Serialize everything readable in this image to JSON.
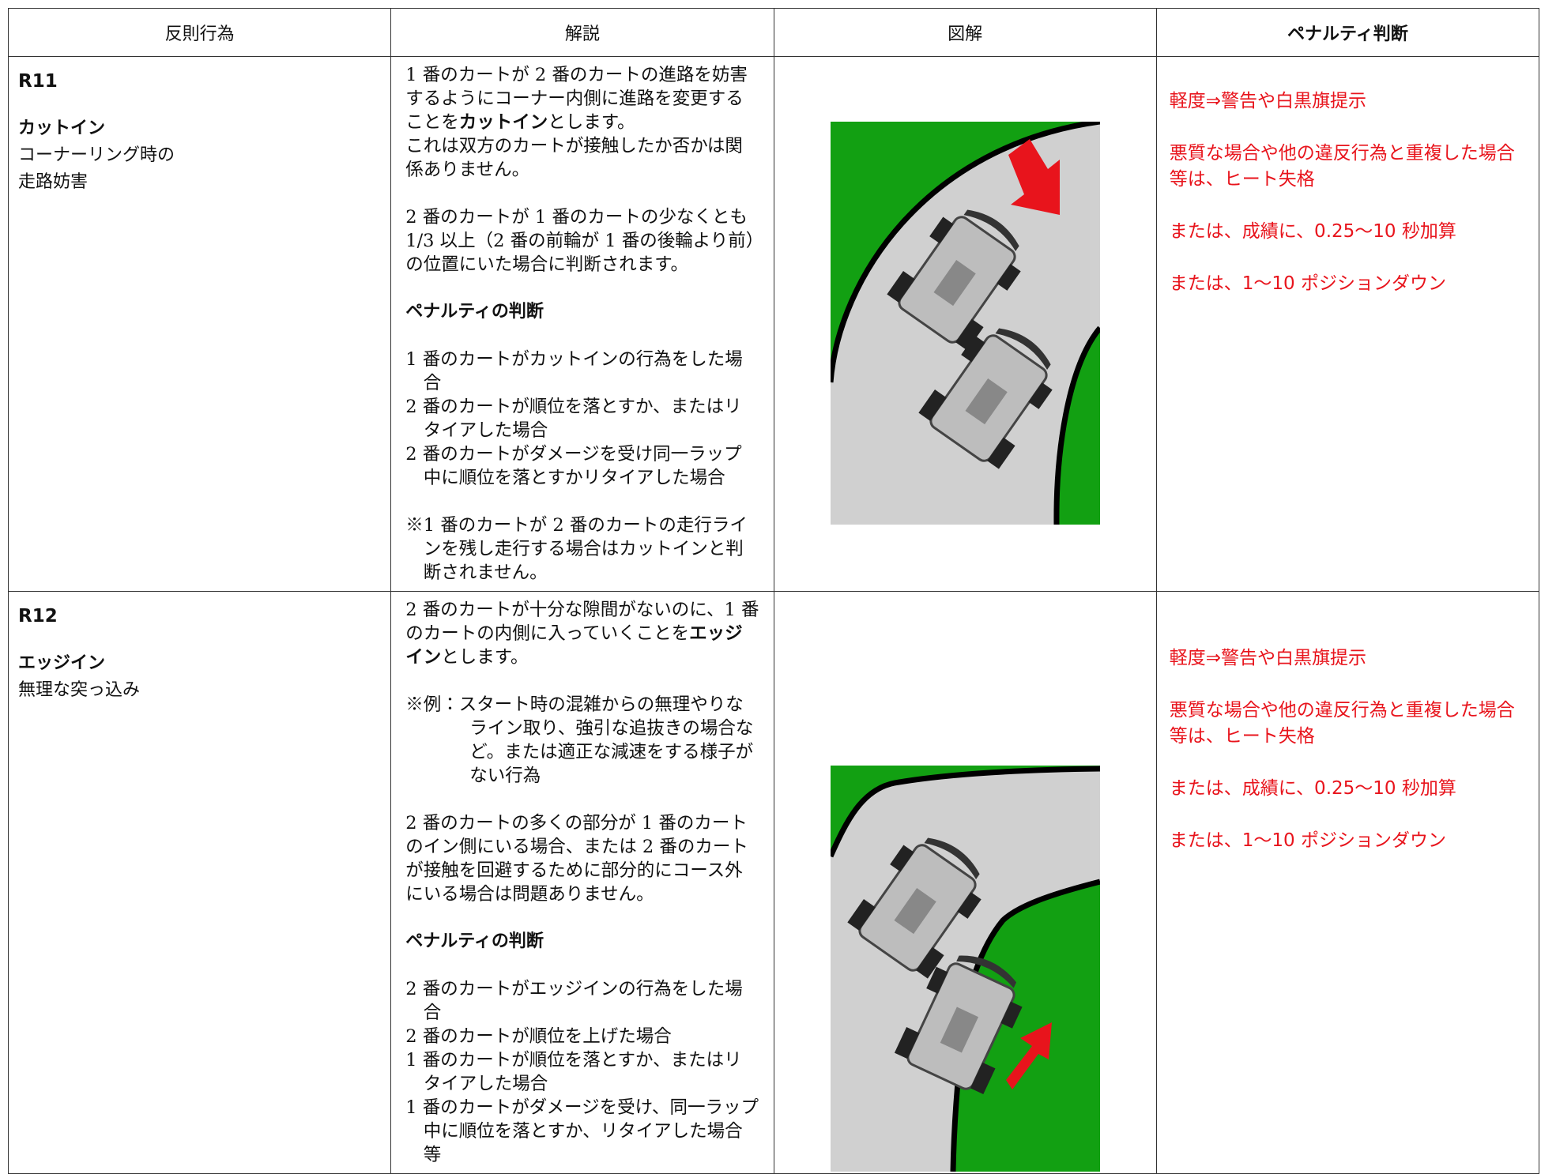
{
  "table": {
    "header": [
      "反則行為",
      "解説",
      "図解",
      "ペナルティ判断"
    ],
    "rows": [
      {
        "code": "R11",
        "name": "カットイン",
        "subtitle": [
          "コーナーリング時の",
          "走路妨害"
        ],
        "intro": [
          [
            {
              "before": "1 番のカートが 2 番のカートの進路を妨害するようにコーナー内側に進路を変更することを",
              "bold": "カットイン",
              "after": "とします。"
            },
            "これは双方のカートが接触したか否かは関係ありません。"
          ],
          [
            "2 番のカートが 1 番のカートの少なくとも 1/3 以上（2 番の前輪が 1 番の後輪より前）の位置にいた場合に判断されます。"
          ]
        ],
        "heading": "ペナルティの判断",
        "cases": [
          "1 番のカートがカットインの行為をした場合",
          "2 番のカートが順位を落とすか、またはリタイアした場合",
          "2 番のカートがダメージを受け同一ラップ中に順位を落とすかリタイアした場合"
        ],
        "note": "※1 番のカートが 2 番のカートの走行ラインを残し走行する場合はカットインと判断されません。",
        "penalty": [
          "軽度⇒警告や白黒旗提示",
          "悪質な場合や他の違反行為と重複した場合等は、ヒート失格",
          "または、成績に、0.25～10 秒加算",
          "または、1～10 ポジションダウン"
        ]
      },
      {
        "code": "R12",
        "name": "エッジイン",
        "subtitle": [
          "無理な突っ込み"
        ],
        "intro": [
          [
            {
              "before": "2 番のカートが十分な隙間がないのに、1 番のカートの内側に入っていくことを",
              "bold": "エッジイン",
              "after": "とします。"
            }
          ],
          [
            "※例：スタート時の混雑からの無理やりなライン取り、強引な追抜きの場合など。または適正な減速をする様子がない行為"
          ],
          [
            "2 番のカートの多くの部分が 1 番のカートのイン側にいる場合、または 2 番のカートが接触を回避するために部分的にコース外にいる場合は問題ありません。"
          ]
        ],
        "heading": "ペナルティの判断",
        "cases": [
          "2 番のカートがエッジインの行為をした場合",
          "2 番のカートが順位を上げた場合",
          "1 番のカートが順位を落とすか、またはリタイアした場合",
          "1 番のカートがダメージを受け、同一ラップ中に順位を落とすか、リタイアした場合等"
        ],
        "penalty": [
          "軽度⇒警告や白黒旗提示",
          "悪質な場合や他の違反行為と重複した場合等は、ヒート失格",
          "または、成績に、0.25～10 秒加算",
          "または、1～10 ポジションダウン"
        ]
      }
    ]
  }
}
